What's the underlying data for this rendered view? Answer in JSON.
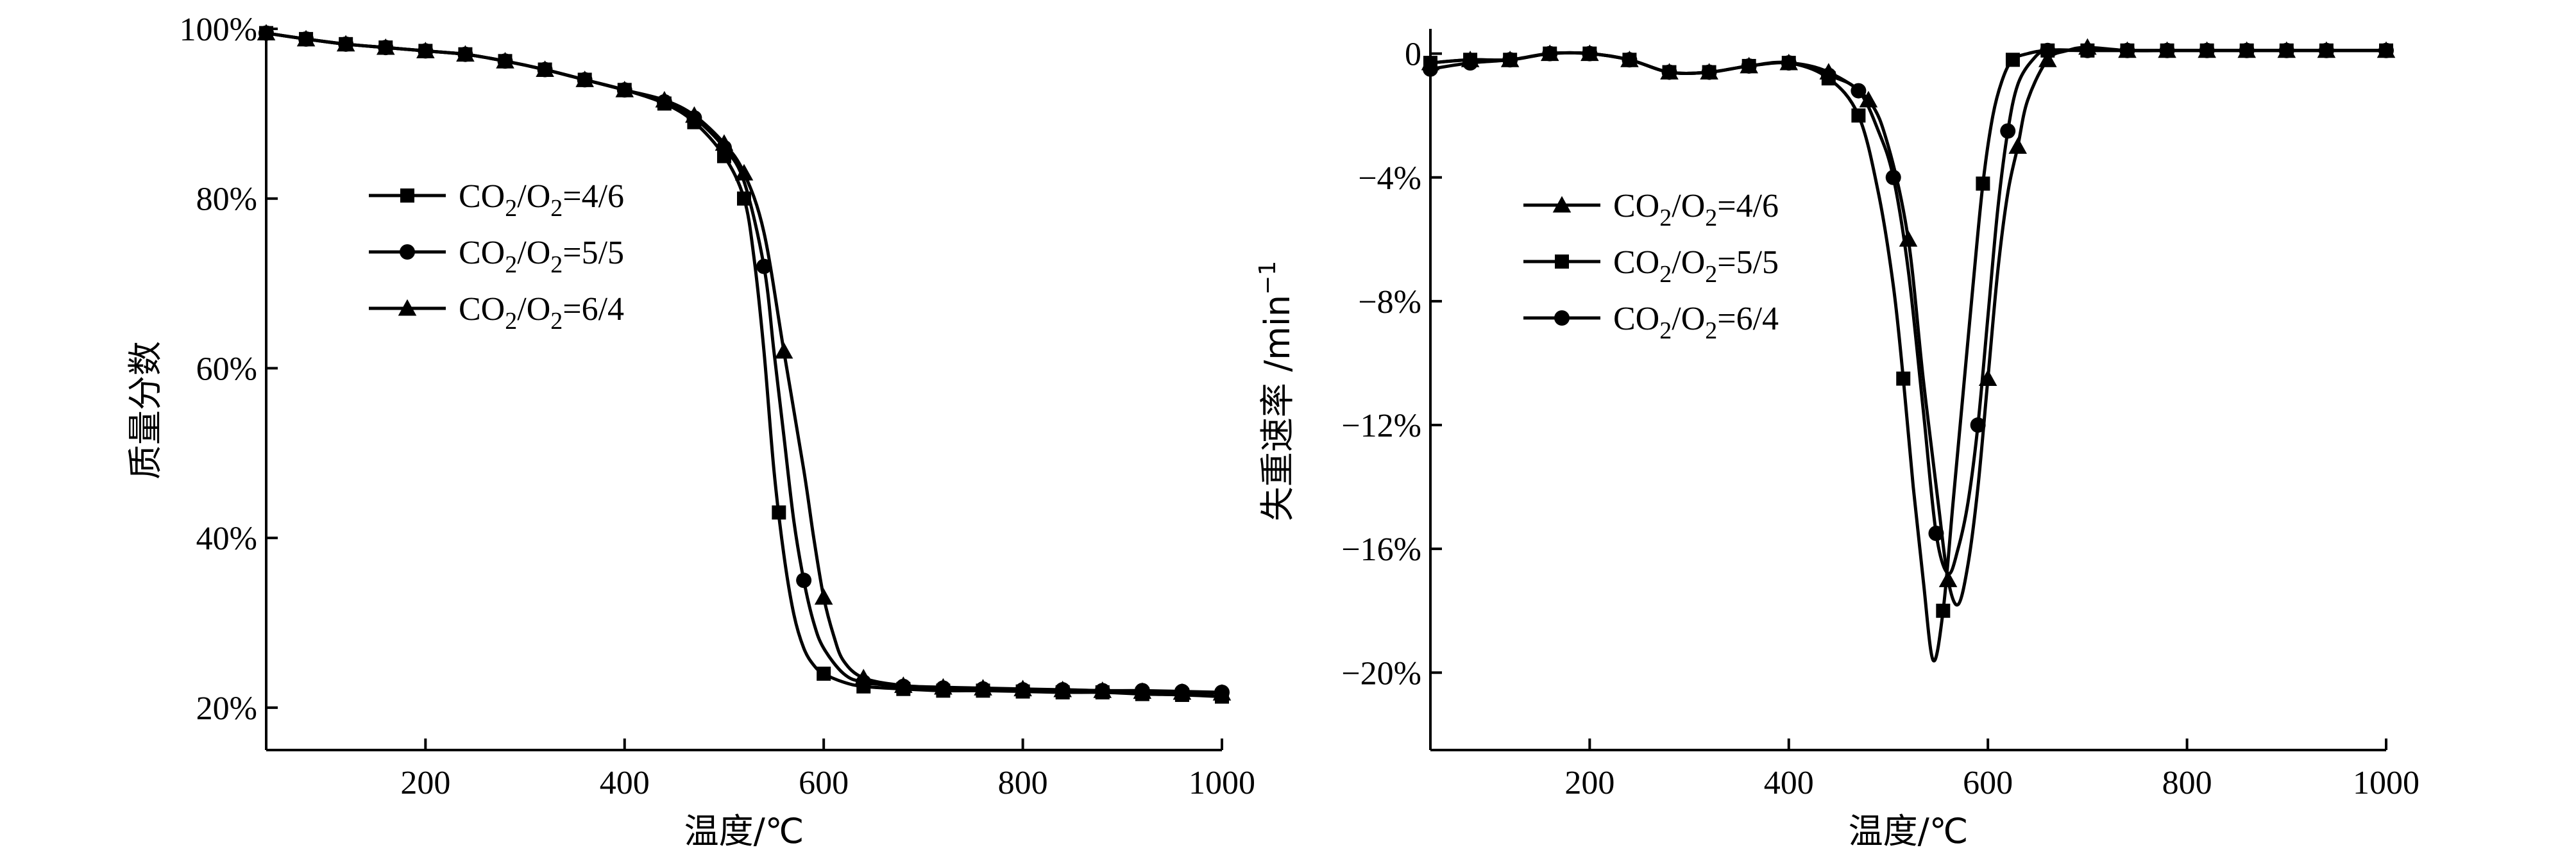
{
  "chart_data": [
    {
      "type": "line",
      "title": "",
      "xlabel": "温度/℃",
      "ylabel": "质量分数",
      "xlim": [
        40,
        1000
      ],
      "ylim": [
        15,
        100
      ],
      "xticks": [
        200,
        400,
        600,
        800,
        1000
      ],
      "xtick_labels": [
        "200",
        "400",
        "600",
        "800",
        "1000"
      ],
      "yticks": [
        20,
        40,
        60,
        80,
        100
      ],
      "ytick_labels": [
        "20%",
        "40%",
        "60%",
        "80%",
        "100%"
      ],
      "legend_position": "left-middle",
      "series": [
        {
          "name": "CO2/O2=4/6",
          "name_parts": [
            [
              "CO",
              "n"
            ],
            [
              "2",
              "sub"
            ],
            [
              "/O",
              "n"
            ],
            [
              "2",
              "sub"
            ],
            [
              "=4/6",
              "n"
            ]
          ],
          "marker": "square",
          "x": [
            40,
            80,
            120,
            160,
            200,
            240,
            280,
            320,
            360,
            400,
            440,
            470,
            500,
            520,
            530,
            540,
            550,
            560,
            570,
            580,
            590,
            600,
            620,
            640,
            680,
            720,
            760,
            800,
            840,
            880,
            920,
            960,
            1000
          ],
          "y": [
            99.5,
            98.8,
            98.2,
            97.8,
            97.4,
            97.0,
            96.2,
            95.2,
            94.0,
            92.8,
            91.2,
            89.0,
            85.0,
            80.0,
            73.0,
            62.0,
            48.0,
            38.0,
            31.0,
            27.0,
            25.0,
            24.0,
            23.0,
            22.5,
            22.2,
            22.0,
            22.0,
            21.9,
            21.8,
            21.8,
            21.6,
            21.5,
            21.3
          ],
          "marker_x": [
            40,
            80,
            120,
            160,
            200,
            240,
            280,
            320,
            360,
            400,
            440,
            470,
            500,
            520,
            555,
            600,
            640,
            680,
            720,
            760,
            800,
            840,
            880,
            920,
            960,
            1000
          ]
        },
        {
          "name": "CO2/O2=5/5",
          "name_parts": [
            [
              "CO",
              "n"
            ],
            [
              "2",
              "sub"
            ],
            [
              "/O",
              "n"
            ],
            [
              "2",
              "sub"
            ],
            [
              "=5/5",
              "n"
            ]
          ],
          "marker": "circle",
          "x": [
            40,
            80,
            120,
            160,
            200,
            240,
            280,
            320,
            360,
            400,
            440,
            470,
            500,
            520,
            540,
            550,
            560,
            570,
            580,
            590,
            600,
            620,
            640,
            680,
            720,
            760,
            800,
            840,
            880,
            920,
            960,
            1000
          ],
          "y": [
            99.5,
            98.8,
            98.2,
            97.8,
            97.4,
            97.0,
            96.2,
            95.2,
            94.0,
            92.8,
            91.4,
            89.5,
            86.0,
            82.0,
            72.0,
            62.0,
            52.0,
            42.0,
            35.0,
            30.0,
            27.0,
            24.0,
            23.0,
            22.5,
            22.3,
            22.2,
            22.1,
            22.1,
            22.0,
            22.0,
            21.9,
            21.8
          ],
          "marker_x": [
            40,
            80,
            120,
            160,
            200,
            240,
            280,
            320,
            360,
            400,
            440,
            470,
            500,
            540,
            580,
            640,
            680,
            720,
            760,
            800,
            840,
            880,
            920,
            960,
            1000
          ]
        },
        {
          "name": "CO2/O2=6/4",
          "name_parts": [
            [
              "CO",
              "n"
            ],
            [
              "2",
              "sub"
            ],
            [
              "/O",
              "n"
            ],
            [
              "2",
              "sub"
            ],
            [
              "=6/4",
              "n"
            ]
          ],
          "marker": "triangle",
          "x": [
            40,
            80,
            120,
            160,
            200,
            240,
            280,
            320,
            360,
            400,
            440,
            470,
            500,
            520,
            540,
            560,
            580,
            590,
            600,
            610,
            620,
            640,
            680,
            720,
            760,
            800,
            840,
            880,
            920,
            960,
            1000
          ],
          "y": [
            99.5,
            98.8,
            98.2,
            97.8,
            97.4,
            97.0,
            96.2,
            95.2,
            94.0,
            92.8,
            91.6,
            89.8,
            86.5,
            83.0,
            76.0,
            62.0,
            48.0,
            40.0,
            33.0,
            28.5,
            25.5,
            23.5,
            22.6,
            22.4,
            22.3,
            22.2,
            22.1,
            22.0,
            21.9,
            21.8,
            21.7
          ],
          "marker_x": [
            40,
            80,
            120,
            160,
            200,
            240,
            280,
            320,
            360,
            400,
            440,
            470,
            500,
            520,
            560,
            600,
            640,
            680,
            720,
            760,
            800,
            840,
            880,
            920,
            960,
            1000
          ]
        }
      ]
    },
    {
      "type": "line",
      "title": "",
      "xlabel": "温度/℃",
      "ylabel": "失重速率 /min",
      "ylabel_sup": "−1",
      "xlim": [
        40,
        1000
      ],
      "ylim": [
        -22.5,
        0.8
      ],
      "xticks": [
        200,
        400,
        600,
        800,
        1000
      ],
      "xtick_labels": [
        "200",
        "400",
        "600",
        "800",
        "1000"
      ],
      "yticks": [
        0,
        -4,
        -8,
        -12,
        -16,
        -20
      ],
      "ytick_labels": [
        "0",
        "−4%",
        "−8%",
        "−12%",
        "−16%",
        "−20%"
      ],
      "legend_position": "left-middle",
      "series": [
        {
          "name": "CO2/O2=4/6",
          "name_parts": [
            [
              "CO",
              "n"
            ],
            [
              "2",
              "sub"
            ],
            [
              "/O",
              "n"
            ],
            [
              "2",
              "sub"
            ],
            [
              "=4/6",
              "n"
            ]
          ],
          "marker": "triangle",
          "x": [
            40,
            80,
            120,
            160,
            200,
            240,
            280,
            320,
            360,
            400,
            440,
            480,
            500,
            520,
            535,
            550,
            560,
            570,
            580,
            590,
            600,
            610,
            620,
            630,
            640,
            660,
            680,
            700,
            740,
            780,
            820,
            860,
            900,
            940,
            1000
          ],
          "y": [
            -0.3,
            -0.2,
            -0.2,
            0.0,
            0.0,
            -0.2,
            -0.6,
            -0.6,
            -0.4,
            -0.3,
            -0.6,
            -1.5,
            -3.0,
            -6.0,
            -10.5,
            -14.5,
            -17.0,
            -17.8,
            -16.5,
            -14.0,
            -10.5,
            -7.0,
            -4.5,
            -3.0,
            -1.5,
            -0.2,
            0.1,
            0.2,
            0.1,
            0.1,
            0.1,
            0.1,
            0.1,
            0.1,
            0.1
          ],
          "marker_x": [
            40,
            80,
            120,
            160,
            200,
            240,
            280,
            320,
            360,
            400,
            440,
            480,
            520,
            560,
            600,
            630,
            660,
            700,
            740,
            780,
            820,
            860,
            900,
            940,
            1000
          ]
        },
        {
          "name": "CO2/O2=5/5",
          "name_parts": [
            [
              "CO",
              "n"
            ],
            [
              "2",
              "sub"
            ],
            [
              "/O",
              "n"
            ],
            [
              "2",
              "sub"
            ],
            [
              "=5/5",
              "n"
            ]
          ],
          "marker": "square",
          "x": [
            40,
            80,
            120,
            160,
            200,
            240,
            280,
            320,
            360,
            400,
            440,
            470,
            490,
            505,
            515,
            525,
            535,
            545,
            555,
            565,
            575,
            585,
            595,
            605,
            615,
            625,
            640,
            660,
            700,
            740,
            780,
            820,
            860,
            900,
            940,
            1000
          ],
          "y": [
            -0.3,
            -0.2,
            -0.2,
            0.0,
            0.0,
            -0.2,
            -0.6,
            -0.6,
            -0.4,
            -0.3,
            -0.8,
            -2.0,
            -4.5,
            -7.5,
            -10.5,
            -14.0,
            -17.0,
            -19.6,
            -18.0,
            -14.5,
            -11.0,
            -7.5,
            -4.2,
            -2.0,
            -0.8,
            -0.2,
            0.0,
            0.1,
            0.1,
            0.1,
            0.1,
            0.1,
            0.1,
            0.1,
            0.1,
            0.1
          ],
          "marker_x": [
            40,
            80,
            120,
            160,
            200,
            240,
            280,
            320,
            360,
            400,
            440,
            470,
            515,
            555,
            595,
            625,
            660,
            700,
            740,
            780,
            820,
            860,
            900,
            940,
            1000
          ]
        },
        {
          "name": "CO2/O2=6/4",
          "name_parts": [
            [
              "CO",
              "n"
            ],
            [
              "2",
              "sub"
            ],
            [
              "/O",
              "n"
            ],
            [
              "2",
              "sub"
            ],
            [
              "=6/4",
              "n"
            ]
          ],
          "marker": "circle",
          "x": [
            40,
            80,
            120,
            160,
            200,
            240,
            280,
            320,
            360,
            400,
            440,
            470,
            490,
            505,
            520,
            535,
            548,
            560,
            570,
            580,
            590,
            600,
            610,
            620,
            630,
            645,
            660,
            700,
            740,
            780,
            820,
            860,
            900,
            940,
            1000
          ],
          "y": [
            -0.5,
            -0.3,
            -0.2,
            0.0,
            0.0,
            -0.2,
            -0.6,
            -0.6,
            -0.4,
            -0.3,
            -0.7,
            -1.2,
            -2.5,
            -4.0,
            -7.0,
            -11.5,
            -15.5,
            -16.8,
            -16.0,
            -14.5,
            -12.0,
            -8.5,
            -5.0,
            -2.5,
            -1.0,
            -0.2,
            0.1,
            0.1,
            0.1,
            0.1,
            0.1,
            0.1,
            0.1,
            0.1,
            0.1
          ],
          "marker_x": [
            40,
            80,
            120,
            160,
            200,
            240,
            280,
            320,
            360,
            400,
            440,
            470,
            505,
            548,
            590,
            620,
            660,
            700,
            740,
            780,
            820,
            860,
            900,
            940,
            1000
          ]
        }
      ]
    }
  ]
}
